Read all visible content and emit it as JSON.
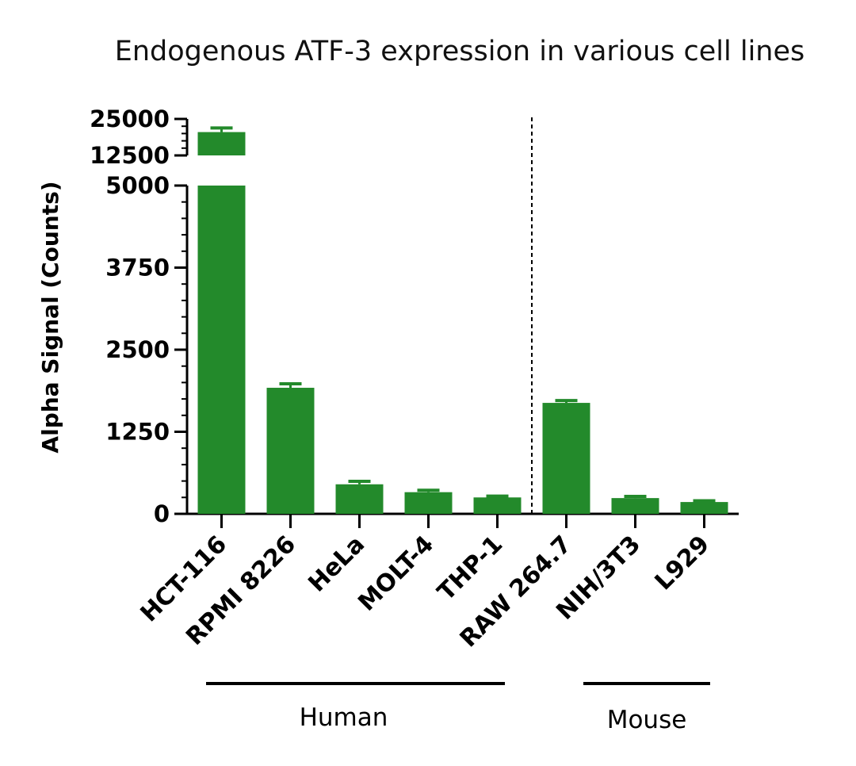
{
  "chart_data": {
    "type": "bar",
    "title": "Endogenous ATF-3 expression in various cell lines",
    "ylabel": "Alpha Signal (Counts)",
    "xlabel": "",
    "categories": [
      "HCT-116",
      "RPMI 8226",
      "HeLa",
      "MOLT-4",
      "THP-1",
      "RAW 264.7",
      "NIH/3T3",
      "L929"
    ],
    "values": [
      20500,
      1920,
      450,
      330,
      250,
      1690,
      240,
      180
    ],
    "errors": [
      1400,
      60,
      45,
      30,
      20,
      35,
      25,
      20
    ],
    "ylim": [
      0,
      25000
    ],
    "y_axis_break": {
      "lower_range": [
        0,
        5000
      ],
      "upper_range": [
        12500,
        25000
      ]
    },
    "yticks_lower": [
      "0",
      "1250",
      "2500",
      "3750",
      "5000"
    ],
    "yticks_upper": [
      "12500",
      "25000"
    ],
    "groups": [
      {
        "label": "Human",
        "categories": [
          "HCT-116",
          "RPMI 8226",
          "HeLa",
          "MOLT-4",
          "THP-1"
        ]
      },
      {
        "label": "Mouse",
        "categories": [
          "RAW 264.7",
          "NIH/3T3",
          "L929"
        ]
      }
    ],
    "bar_color": "#238a2b",
    "grid": false,
    "legend": "none",
    "divider": "dashed line between THP-1 and RAW 264.7"
  }
}
